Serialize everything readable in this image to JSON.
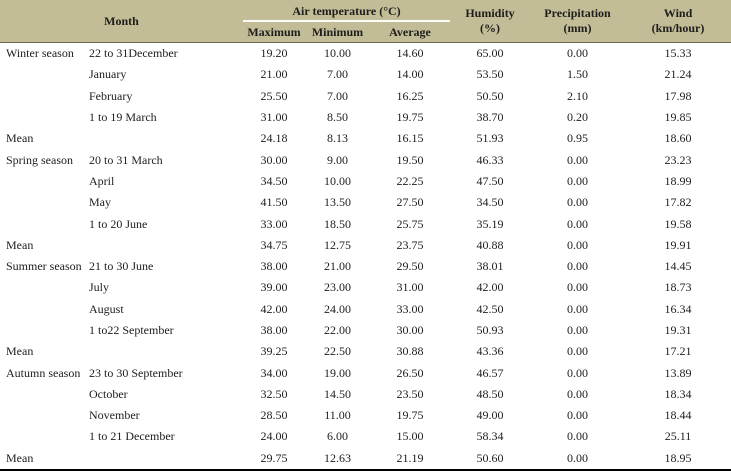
{
  "colors": {
    "header_bg": "#c3bd97",
    "text": "#1d1d1b",
    "bottom_border": "#000000"
  },
  "table": {
    "header": {
      "month": "Month",
      "air_temperature": "Air temperature (°C)",
      "maximum": "Maximum",
      "minimum": "Minimum",
      "average": "Average",
      "humidity": "Humidity\n(%)",
      "precipitation": "Precipitation\n(mm)",
      "wind": "Wind\n(km/hour)"
    },
    "rows": [
      {
        "season": "Winter season",
        "month": "22 to 31December",
        "max": "19.20",
        "min": "10.00",
        "avg": "14.60",
        "humidity": "65.00",
        "precip": "0.00",
        "wind": "15.33"
      },
      {
        "season": "",
        "month": "January",
        "max": "21.00",
        "min": "7.00",
        "avg": "14.00",
        "humidity": "53.50",
        "precip": "1.50",
        "wind": "21.24"
      },
      {
        "season": "",
        "month": "February",
        "max": "25.50",
        "min": "7.00",
        "avg": "16.25",
        "humidity": "50.50",
        "precip": "2.10",
        "wind": "17.98"
      },
      {
        "season": "",
        "month": "1 to 19 March",
        "max": "31.00",
        "min": "8.50",
        "avg": "19.75",
        "humidity": "38.70",
        "precip": "0.20",
        "wind": "19.85"
      },
      {
        "season": "Mean",
        "month": "",
        "max": "24.18",
        "min": "8.13",
        "avg": "16.15",
        "humidity": "51.93",
        "precip": "0.95",
        "wind": "18.60"
      },
      {
        "season": "Spring season",
        "month": "20 to 31 March",
        "max": "30.00",
        "min": "9.00",
        "avg": "19.50",
        "humidity": "46.33",
        "precip": "0.00",
        "wind": "23.23"
      },
      {
        "season": "",
        "month": "April",
        "max": "34.50",
        "min": "10.00",
        "avg": "22.25",
        "humidity": "47.50",
        "precip": "0.00",
        "wind": "18.99"
      },
      {
        "season": "",
        "month": "May",
        "max": "41.50",
        "min": "13.50",
        "avg": "27.50",
        "humidity": "34.50",
        "precip": "0.00",
        "wind": "17.82"
      },
      {
        "season": "",
        "month": "1 to 20 June",
        "max": "33.00",
        "min": "18.50",
        "avg": "25.75",
        "humidity": "35.19",
        "precip": "0.00",
        "wind": "19.58"
      },
      {
        "season": "Mean",
        "month": "",
        "max": "34.75",
        "min": "12.75",
        "avg": "23.75",
        "humidity": "40.88",
        "precip": "0.00",
        "wind": "19.91"
      },
      {
        "season": "Summer season",
        "month": "21 to 30 June",
        "max": "38.00",
        "min": "21.00",
        "avg": "29.50",
        "humidity": "38.01",
        "precip": "0.00",
        "wind": "14.45"
      },
      {
        "season": "",
        "month": "July",
        "max": "39.00",
        "min": "23.00",
        "avg": "31.00",
        "humidity": "42.00",
        "precip": "0.00",
        "wind": "18.73"
      },
      {
        "season": "",
        "month": "August",
        "max": "42.00",
        "min": "24.00",
        "avg": "33.00",
        "humidity": "42.50",
        "precip": "0.00",
        "wind": "16.34"
      },
      {
        "season": "",
        "month": "1 to22 September",
        "max": "38.00",
        "min": "22.00",
        "avg": "30.00",
        "humidity": "50.93",
        "precip": "0.00",
        "wind": "19.31"
      },
      {
        "season": "Mean",
        "month": "",
        "max": "39.25",
        "min": "22.50",
        "avg": "30.88",
        "humidity": "43.36",
        "precip": "0.00",
        "wind": "17.21"
      },
      {
        "season": "Autumn season",
        "month": "23 to 30 September",
        "max": "34.00",
        "min": "19.00",
        "avg": "26.50",
        "humidity": "46.57",
        "precip": "0.00",
        "wind": "13.89"
      },
      {
        "season": "",
        "month": "October",
        "max": "32.50",
        "min": "14.50",
        "avg": "23.50",
        "humidity": "48.50",
        "precip": "0.00",
        "wind": "18.34"
      },
      {
        "season": "",
        "month": "November",
        "max": "28.50",
        "min": "11.00",
        "avg": "19.75",
        "humidity": "49.00",
        "precip": "0.00",
        "wind": "18.44"
      },
      {
        "season": "",
        "month": "1 to 21 December",
        "max": "24.00",
        "min": "6.00",
        "avg": "15.00",
        "humidity": "58.34",
        "precip": "0.00",
        "wind": "25.11"
      },
      {
        "season": "Mean",
        "month": "",
        "max": "29.75",
        "min": "12.63",
        "avg": "21.19",
        "humidity": "50.60",
        "precip": "0.00",
        "wind": "18.95"
      }
    ]
  }
}
